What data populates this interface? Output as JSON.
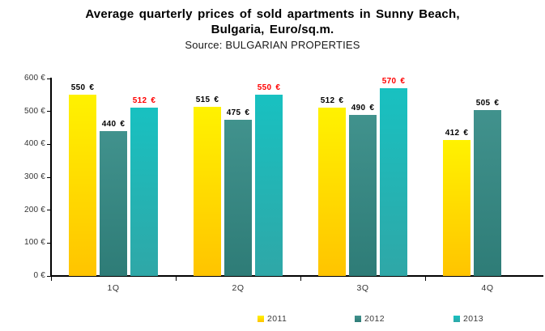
{
  "title": {
    "line1": "Average quarterly prices of sold apartments in Sunny Beach,",
    "line2": "Bulgaria, Euro/sq.m.",
    "source": "Source: BULGARIAN PROPERTIES"
  },
  "chart_data": {
    "type": "bar",
    "categories": [
      "1Q",
      "2Q",
      "3Q",
      "4Q"
    ],
    "series": [
      {
        "name": "2011",
        "values": [
          550,
          515,
          512,
          412
        ],
        "color_top": "#FFF200",
        "color_bottom": "#FFC400",
        "label_color": "#000000"
      },
      {
        "name": "2012",
        "values": [
          440,
          475,
          490,
          505
        ],
        "color_top": "#41928D",
        "color_bottom": "#2E7C77",
        "label_color": "#000000"
      },
      {
        "name": "2013",
        "values": [
          512,
          550,
          570,
          null
        ],
        "color_top": "#18C1C1",
        "color_bottom": "#2FA7A7",
        "label_color": "#FF0000"
      }
    ],
    "value_suffix": " €",
    "y_axis": {
      "min": 0,
      "max": 600,
      "step": 100,
      "tick_labels": [
        "0 €",
        "100 €",
        "200 €",
        "300 €",
        "400 €",
        "500 €",
        "600 €"
      ]
    },
    "x_axis": {
      "tick_labels": [
        "1Q",
        "2Q",
        "3Q",
        "4Q"
      ]
    },
    "legend": {
      "position": "bottom",
      "entries": [
        "2011",
        "2012",
        "2013"
      ]
    },
    "grid": false,
    "axis_color": "#000000",
    "label_red": "#FF0000"
  }
}
